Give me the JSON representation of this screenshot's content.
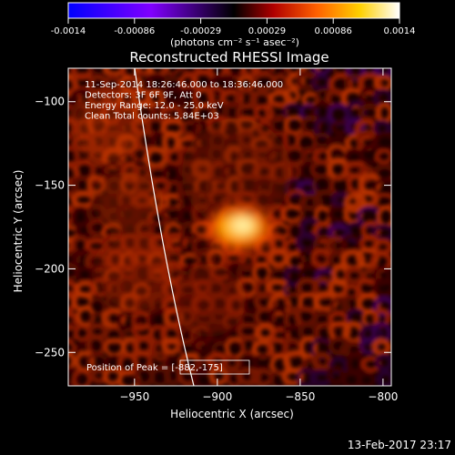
{
  "chart_data": {
    "type": "heatmap",
    "title": "Reconstructed RHESSI Image",
    "xlabel": "Heliocentric X (arcsec)",
    "ylabel": "Heliocentric Y (arcsec)",
    "xlim": [
      -990,
      -795
    ],
    "ylim": [
      -270,
      -80
    ],
    "x_ticks": [
      -950,
      -900,
      -850,
      -800
    ],
    "y_ticks": [
      -100,
      -150,
      -200,
      -250
    ],
    "colorbar": {
      "label": "(photons cm⁻² s⁻¹ asec⁻²)",
      "range": [
        -0.0014,
        0.0014
      ],
      "ticks": [
        "-0.0014",
        "-0.00086",
        "-0.00029",
        "0.00029",
        "0.00086",
        "0.0014"
      ],
      "colors": [
        "#0000ff",
        "#8000ff",
        "#000000",
        "#b00000",
        "#ff6000",
        "#ffd000",
        "#ffffff"
      ]
    },
    "annotations": [
      "11-Sep-2014 18:26:46.000 to 18:36:46.000",
      "Detectors: 3F 6F 9F, Att 0",
      "Energy Range: 12.0 - 25.0 keV",
      "Clean     Total counts: 5.84E+03"
    ],
    "peak_label": "Position of Peak = [-882,-175]",
    "peak": {
      "x": -882,
      "y": -175
    },
    "footer": "13-Feb-2017 23:17"
  }
}
